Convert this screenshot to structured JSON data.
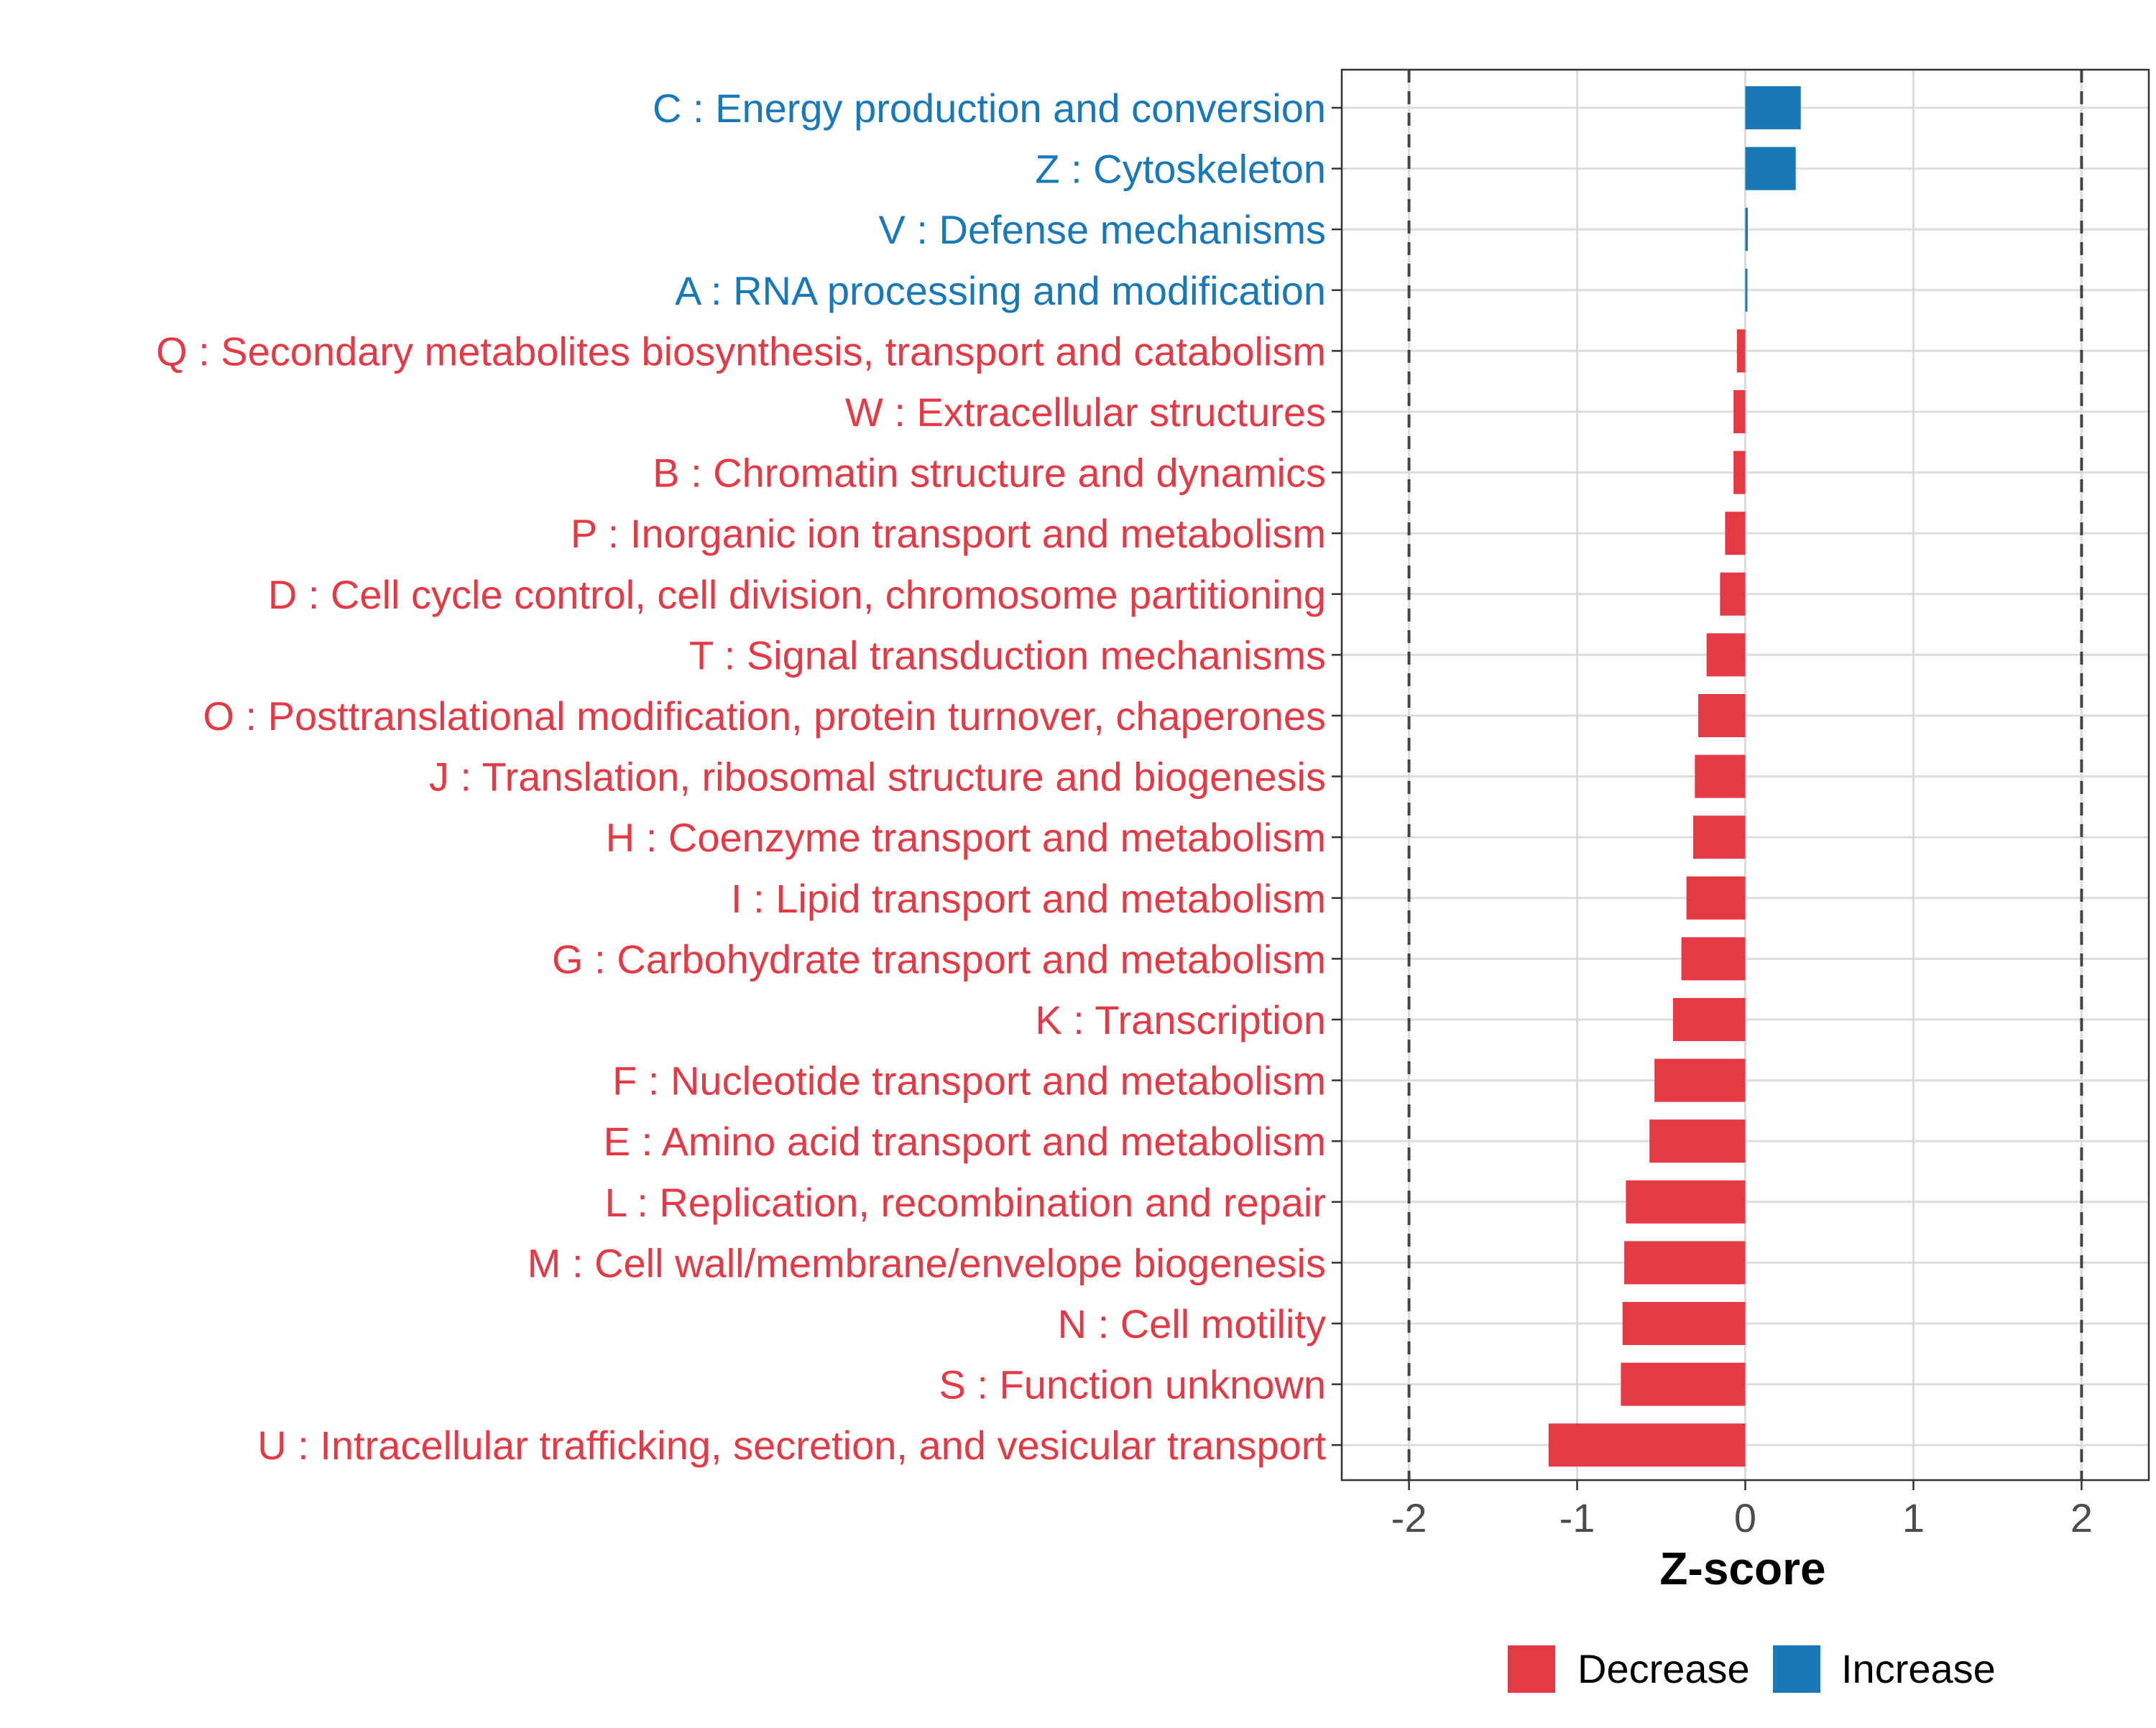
{
  "chart_data": {
    "type": "bar",
    "orientation": "horizontal",
    "xlabel": "Z-score",
    "ylabel": "",
    "xlim": [
      -2.4,
      2.4
    ],
    "xticks": [
      -2,
      -1,
      0,
      1,
      2
    ],
    "xtick_labels": [
      "-2",
      "-1",
      "0",
      "1",
      "2"
    ],
    "threshold_lines": [
      -2,
      2
    ],
    "grid": true,
    "legend_position": "bottom",
    "colors": {
      "Decrease": "#e63946",
      "Increase": "#1878b8"
    },
    "legend": [
      {
        "label": "Decrease",
        "color": "#e63946"
      },
      {
        "label": "Increase",
        "color": "#1878b8"
      }
    ],
    "categories": [
      "C : Energy production and conversion",
      "Z : Cytoskeleton",
      "V : Defense mechanisms",
      "A : RNA processing and modification",
      "Q : Secondary metabolites biosynthesis, transport and catabolism",
      "W : Extracellular structures",
      "B : Chromatin structure and dynamics",
      "P : Inorganic ion transport and metabolism",
      "D : Cell cycle control, cell division, chromosome partitioning",
      "T : Signal transduction mechanisms",
      "O : Posttranslational modification, protein turnover, chaperones",
      "J : Translation, ribosomal structure and biogenesis",
      "H : Coenzyme transport and metabolism",
      "I : Lipid transport and metabolism",
      "G : Carbohydrate transport and metabolism",
      "K : Transcription",
      "F : Nucleotide transport and metabolism",
      "E : Amino acid transport and metabolism",
      "L : Replication, recombination and repair",
      "M : Cell wall/membrane/envelope biogenesis",
      "N : Cell motility",
      "S : Function unknown",
      "U : Intracellular trafficking, secretion, and vesicular transport"
    ],
    "values": [
      0.33,
      0.3,
      0.015,
      0.008,
      -0.05,
      -0.07,
      -0.07,
      -0.12,
      -0.15,
      -0.23,
      -0.28,
      -0.3,
      -0.31,
      -0.35,
      -0.38,
      -0.43,
      -0.54,
      -0.57,
      -0.71,
      -0.72,
      -0.73,
      -0.74,
      -1.17
    ],
    "direction": [
      "Increase",
      "Increase",
      "Increase",
      "Increase",
      "Decrease",
      "Decrease",
      "Decrease",
      "Decrease",
      "Decrease",
      "Decrease",
      "Decrease",
      "Decrease",
      "Decrease",
      "Decrease",
      "Decrease",
      "Decrease",
      "Decrease",
      "Decrease",
      "Decrease",
      "Decrease",
      "Decrease",
      "Decrease",
      "Decrease"
    ]
  }
}
